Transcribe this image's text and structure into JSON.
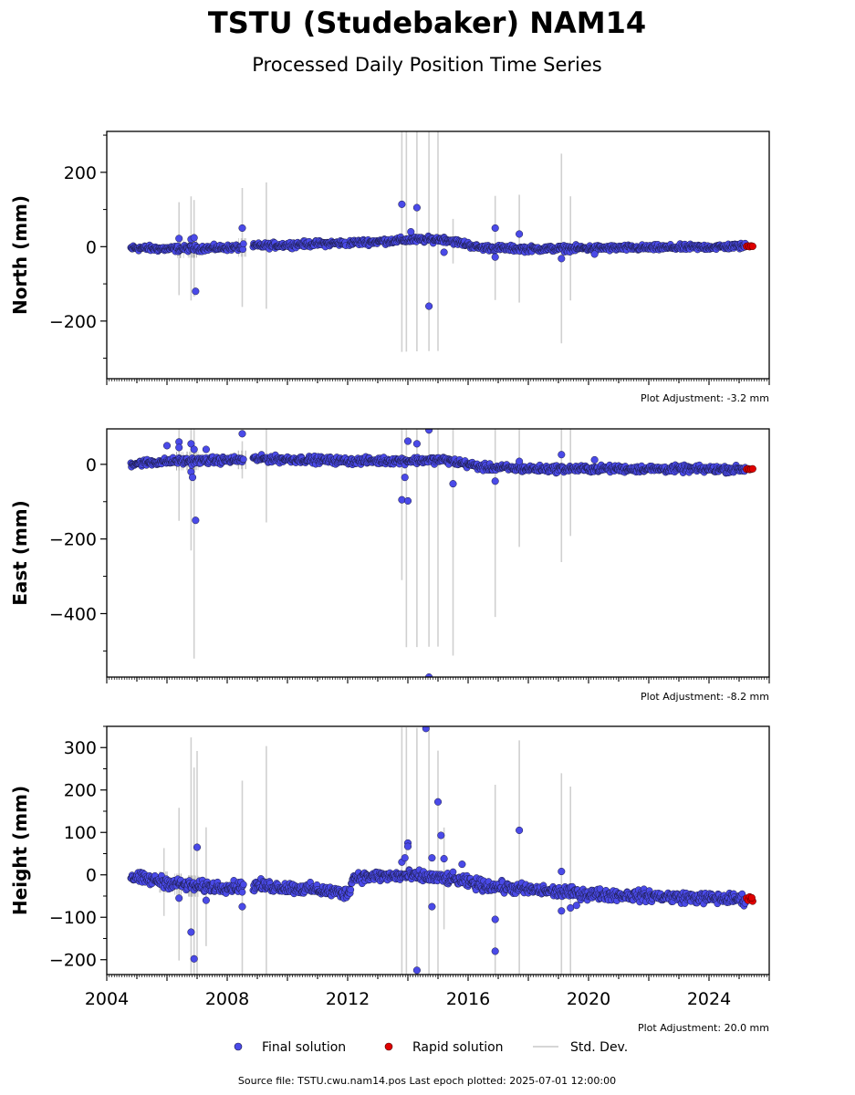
{
  "figure": {
    "title": "TSTU (Studebaker) NAM14",
    "subtitle": "Processed Daily Position Time Series",
    "source_note": "Source file: TSTU.cwu.nam14.pos  Last epoch plotted: 2025-07-01 12:00:00"
  },
  "legend": {
    "final_label": "Final solution",
    "rapid_label": "Rapid solution",
    "std_label": "Std. Dev."
  },
  "colors": {
    "final": "#4a4ae8",
    "final_edge": "#1a1a40",
    "rapid": "#e00000",
    "std": "#d0d0d0",
    "std_dark": "#8a8a8a"
  },
  "chart_data": [
    {
      "type": "scatter",
      "title": "",
      "xlabel": "",
      "ylabel": "North (mm)",
      "adjustment": "Plot Adjustment: -3.2 mm",
      "xlim": [
        2004.0,
        2026.0
      ],
      "ylim": [
        -355,
        310
      ],
      "yticks": [
        -200,
        0,
        200
      ],
      "xticks": [],
      "gaps": [
        [
          2008.55,
          2008.85
        ],
        [
          2011.95,
          2012.05
        ]
      ],
      "trend": [
        [
          2004.8,
          -3
        ],
        [
          2006.0,
          -6
        ],
        [
          2008.5,
          -2
        ],
        [
          2009.0,
          2
        ],
        [
          2011.0,
          8
        ],
        [
          2012.0,
          10
        ],
        [
          2014.0,
          18
        ],
        [
          2015.2,
          20
        ],
        [
          2016.0,
          6
        ],
        [
          2016.3,
          -2
        ],
        [
          2018.0,
          -6
        ],
        [
          2020.0,
          -4
        ],
        [
          2022.0,
          -3
        ],
        [
          2024.0,
          -1
        ],
        [
          2025.4,
          2
        ]
      ],
      "scatter": 6,
      "outliers": [
        [
          2006.4,
          22
        ],
        [
          2006.8,
          20
        ],
        [
          2006.9,
          24
        ],
        [
          2006.95,
          -120
        ],
        [
          2008.5,
          50
        ],
        [
          2013.8,
          114
        ],
        [
          2014.3,
          105
        ],
        [
          2014.1,
          40
        ],
        [
          2014.7,
          -160
        ],
        [
          2015.2,
          -15
        ],
        [
          2016.9,
          50
        ],
        [
          2016.9,
          -28
        ],
        [
          2017.7,
          34
        ],
        [
          2019.1,
          -32
        ],
        [
          2020.2,
          -20
        ]
      ],
      "std_bars": [
        [
          2006.4,
          125
        ],
        [
          2006.8,
          140
        ],
        [
          2006.9,
          130
        ],
        [
          2008.5,
          160
        ],
        [
          2009.3,
          170
        ],
        [
          2013.8,
          300
        ],
        [
          2013.95,
          300
        ],
        [
          2014.3,
          300
        ],
        [
          2014.7,
          300
        ],
        [
          2015.0,
          300
        ],
        [
          2015.5,
          60
        ],
        [
          2016.9,
          140
        ],
        [
          2017.7,
          145
        ],
        [
          2019.1,
          255
        ],
        [
          2019.4,
          140
        ]
      ],
      "rapid": [
        [
          2025.25,
          1
        ],
        [
          2025.3,
          2
        ],
        [
          2025.35,
          0
        ],
        [
          2025.4,
          2
        ],
        [
          2025.45,
          1
        ]
      ]
    },
    {
      "type": "scatter",
      "title": "",
      "xlabel": "",
      "ylabel": "East (mm)",
      "adjustment": "Plot Adjustment: -8.2 mm",
      "xlim": [
        2004.0,
        2026.0
      ],
      "ylim": [
        -570,
        95
      ],
      "yticks": [
        -400,
        -200,
        0
      ],
      "xticks": [],
      "gaps": [
        [
          2008.55,
          2008.85
        ]
      ],
      "trend": [
        [
          2004.8,
          2
        ],
        [
          2006.0,
          8
        ],
        [
          2008.5,
          12
        ],
        [
          2009.0,
          15
        ],
        [
          2011.0,
          12
        ],
        [
          2012.0,
          9
        ],
        [
          2014.0,
          10
        ],
        [
          2015.2,
          12
        ],
        [
          2016.0,
          0
        ],
        [
          2016.5,
          -8
        ],
        [
          2018.0,
          -12
        ],
        [
          2020.0,
          -12
        ],
        [
          2022.0,
          -12
        ],
        [
          2024.0,
          -13
        ],
        [
          2025.4,
          -13
        ]
      ],
      "scatter": 7,
      "outliers": [
        [
          2006.0,
          50
        ],
        [
          2006.4,
          60
        ],
        [
          2006.4,
          45
        ],
        [
          2006.8,
          55
        ],
        [
          2006.9,
          40
        ],
        [
          2006.8,
          -20
        ],
        [
          2006.85,
          -35
        ],
        [
          2006.95,
          -150
        ],
        [
          2007.3,
          40
        ],
        [
          2008.5,
          82
        ],
        [
          2013.8,
          -95
        ],
        [
          2013.9,
          -35
        ],
        [
          2014.0,
          62
        ],
        [
          2014.0,
          -98
        ],
        [
          2014.3,
          55
        ],
        [
          2014.7,
          92
        ],
        [
          2014.7,
          -570
        ],
        [
          2015.5,
          -52
        ],
        [
          2016.9,
          -45
        ],
        [
          2017.7,
          8
        ],
        [
          2019.1,
          26
        ],
        [
          2020.2,
          12
        ]
      ],
      "std_bars": [
        [
          2006.4,
          160
        ],
        [
          2006.8,
          240
        ],
        [
          2006.9,
          530
        ],
        [
          2008.5,
          50
        ],
        [
          2009.3,
          170
        ],
        [
          2013.8,
          320
        ],
        [
          2013.95,
          500
        ],
        [
          2014.3,
          500
        ],
        [
          2014.7,
          500
        ],
        [
          2015.0,
          500
        ],
        [
          2015.5,
          520
        ],
        [
          2016.9,
          400
        ],
        [
          2017.7,
          210
        ],
        [
          2019.1,
          250
        ],
        [
          2019.4,
          180
        ]
      ],
      "rapid": [
        [
          2025.25,
          -13
        ],
        [
          2025.3,
          -12
        ],
        [
          2025.35,
          -14
        ],
        [
          2025.4,
          -13
        ],
        [
          2025.45,
          -12
        ]
      ]
    },
    {
      "type": "scatter",
      "title": "",
      "xlabel": "",
      "ylabel": "Height (mm)",
      "adjustment": "Plot Adjustment: 20.0 mm",
      "xlim": [
        2004.0,
        2026.0
      ],
      "ylim": [
        -235,
        350
      ],
      "yticks": [
        -200,
        -100,
        0,
        100,
        200,
        300
      ],
      "xticks": [
        2004,
        2008,
        2012,
        2016,
        2020,
        2024
      ],
      "gaps": [
        [
          2008.55,
          2008.85
        ]
      ],
      "trend": [
        [
          2004.8,
          -5
        ],
        [
          2006.0,
          -18
        ],
        [
          2007.0,
          -28
        ],
        [
          2008.5,
          -28
        ],
        [
          2009.0,
          -25
        ],
        [
          2010.0,
          -30
        ],
        [
          2011.0,
          -35
        ],
        [
          2012.0,
          -45
        ],
        [
          2012.2,
          -5
        ],
        [
          2014.0,
          -2
        ],
        [
          2015.5,
          -10
        ],
        [
          2016.5,
          -25
        ],
        [
          2018.0,
          -35
        ],
        [
          2020.0,
          -45
        ],
        [
          2022.0,
          -50
        ],
        [
          2024.0,
          -55
        ],
        [
          2025.4,
          -58
        ]
      ],
      "scatter": 10,
      "outliers": [
        [
          2006.4,
          -55
        ],
        [
          2006.8,
          -135
        ],
        [
          2006.9,
          -198
        ],
        [
          2007.0,
          65
        ],
        [
          2007.3,
          -60
        ],
        [
          2008.5,
          -75
        ],
        [
          2013.8,
          30
        ],
        [
          2013.9,
          40
        ],
        [
          2014.0,
          75
        ],
        [
          2014.0,
          67
        ],
        [
          2014.3,
          -225
        ],
        [
          2014.6,
          345
        ],
        [
          2014.8,
          40
        ],
        [
          2014.8,
          -75
        ],
        [
          2015.0,
          172
        ],
        [
          2015.1,
          93
        ],
        [
          2015.2,
          38
        ],
        [
          2015.8,
          25
        ],
        [
          2016.9,
          -105
        ],
        [
          2016.9,
          -180
        ],
        [
          2017.7,
          105
        ],
        [
          2019.1,
          8
        ],
        [
          2019.1,
          -85
        ],
        [
          2019.4,
          -78
        ],
        [
          2019.6,
          -72
        ]
      ],
      "std_bars": [
        [
          2005.9,
          80
        ],
        [
          2006.4,
          180
        ],
        [
          2006.8,
          350
        ],
        [
          2006.9,
          280
        ],
        [
          2007.0,
          320
        ],
        [
          2007.3,
          140
        ],
        [
          2008.5,
          250
        ],
        [
          2009.3,
          330
        ],
        [
          2013.8,
          350
        ],
        [
          2013.95,
          350
        ],
        [
          2014.3,
          350
        ],
        [
          2014.7,
          350
        ],
        [
          2015.0,
          300
        ],
        [
          2015.2,
          120
        ],
        [
          2016.9,
          240
        ],
        [
          2017.7,
          350
        ],
        [
          2019.1,
          280
        ],
        [
          2019.4,
          250
        ]
      ],
      "rapid": [
        [
          2025.25,
          -55
        ],
        [
          2025.3,
          -60
        ],
        [
          2025.35,
          -52
        ],
        [
          2025.4,
          -58
        ],
        [
          2025.45,
          -62
        ],
        [
          2025.42,
          -54
        ]
      ]
    }
  ]
}
